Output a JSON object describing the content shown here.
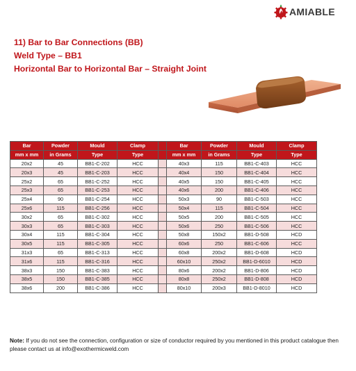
{
  "brand": {
    "name": "AMIABLE",
    "icon": "gear-flame-logo",
    "color": "#c0161b"
  },
  "heading": {
    "line1": "11) Bar to Bar Connections (BB)",
    "line2": "Weld Type – BB1",
    "line3": "Horizontal Bar to Horizontal Bar – Straight Joint"
  },
  "table": {
    "header1": [
      "Bar",
      "Powder",
      "Mould",
      "Clamp",
      "Bar",
      "Powder",
      "Mould",
      "Clamp"
    ],
    "header2": [
      "mm x mm",
      "in Grams",
      "Type",
      "Type",
      "mm x mm",
      "in Grams",
      "Type",
      "Type"
    ],
    "rows": [
      [
        "20x2",
        "45",
        "BB1-C-202",
        "HCC",
        "40x3",
        "115",
        "BB1-C-403",
        "HCC"
      ],
      [
        "20x3",
        "45",
        "BB1-C-203",
        "HCC",
        "40x4",
        "150",
        "BB1-C-404",
        "HCC"
      ],
      [
        "25x2",
        "65",
        "BB1-C-252",
        "HCC",
        "40x5",
        "150",
        "BB1-C-405",
        "HCC"
      ],
      [
        "25x3",
        "65",
        "BB1-C-253",
        "HCC",
        "40x6",
        "200",
        "BB1-C-406",
        "HCC"
      ],
      [
        "25x4",
        "90",
        "BB1-C-254",
        "HCC",
        "50x3",
        "90",
        "BB1-C-503",
        "HCC"
      ],
      [
        "25x6",
        "115",
        "BB1-C-256",
        "HCC",
        "50x4",
        "115",
        "BB1-C-504",
        "HCC"
      ],
      [
        "30x2",
        "65",
        "BB1-C-302",
        "HCC",
        "50x5",
        "200",
        "BB1-C-505",
        "HCC"
      ],
      [
        "30x3",
        "65",
        "BB1-C-303",
        "HCC",
        "50x6",
        "250",
        "BB1-C-506",
        "HCC"
      ],
      [
        "30x4",
        "115",
        "BB1-C-304",
        "HCC",
        "50x8",
        "150x2",
        "BB1-D-508",
        "HCD"
      ],
      [
        "30x5",
        "115",
        "BB1-C-305",
        "HCC",
        "60x6",
        "250",
        "BB1-C-606",
        "HCC"
      ],
      [
        "31x3",
        "65",
        "BB1-C-313",
        "HCC",
        "60x8",
        "200x2",
        "BB1-D-608",
        "HCD"
      ],
      [
        "31x6",
        "115",
        "BB1-C-316",
        "HCC",
        "60x10",
        "250x2",
        "BB1-D-6010",
        "HCD"
      ],
      [
        "38x3",
        "150",
        "BB1-C-383",
        "HCC",
        "80x6",
        "200x2",
        "BB1-D-806",
        "HCD"
      ],
      [
        "38x5",
        "150",
        "BB1-C-385",
        "HCC",
        "80x8",
        "250x2",
        "BB1-D-808",
        "HCD"
      ],
      [
        "38x6",
        "200",
        "BB1-C-386",
        "HCC",
        "80x10",
        "200x3",
        "BB1-D-8010",
        "HCD"
      ]
    ]
  },
  "note": {
    "label": "Note:",
    "text": " If you do not see the connection, configuration or size of conductor required by you mentioned in this product catalogue then please contact us at info@exothermicweld.com"
  }
}
